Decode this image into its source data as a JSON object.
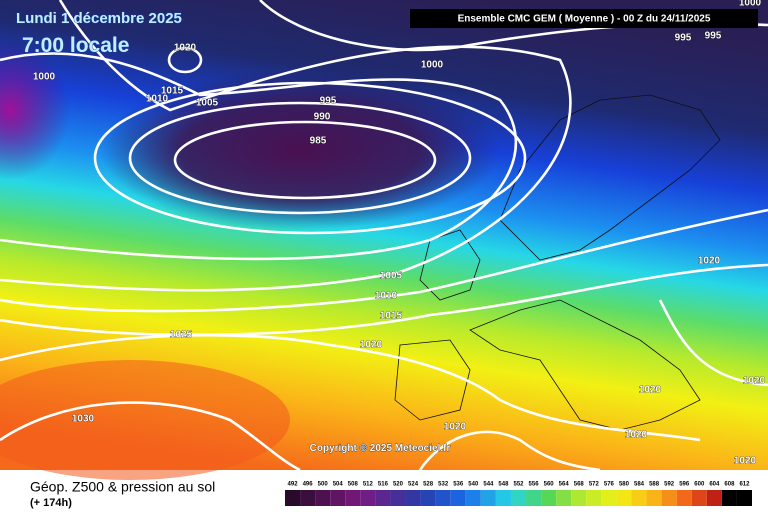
{
  "header": {
    "date": "Lundi 1 décembre 2025",
    "time": "7:00 locale",
    "model": "Ensemble CMC GEM  ( Moyenne )  -  00 Z du 24/11/2025"
  },
  "isobar_labels": [
    "1020",
    "1000",
    "1015",
    "1010",
    "1005",
    "995",
    "990",
    "985",
    "1000",
    "995",
    "995",
    "1000",
    "1020",
    "1005",
    "1010",
    "1015",
    "1020",
    "1025",
    "1030",
    "1020",
    "1020",
    "1020",
    "1020",
    "1020"
  ],
  "copyright": "Copyright © 2025 Meteociel.fr",
  "footer": {
    "title": "Géop. Z500 & pression au sol",
    "lead": "(+ 174h)"
  },
  "scale": {
    "labels": [
      "492",
      "496",
      "500",
      "504",
      "508",
      "512",
      "516",
      "520",
      "524",
      "528",
      "532",
      "536",
      "540",
      "544",
      "548",
      "552",
      "556",
      "560",
      "564",
      "568",
      "572",
      "576",
      "580",
      "584",
      "588",
      "592",
      "596",
      "600",
      "604",
      "608",
      "612"
    ]
  }
}
